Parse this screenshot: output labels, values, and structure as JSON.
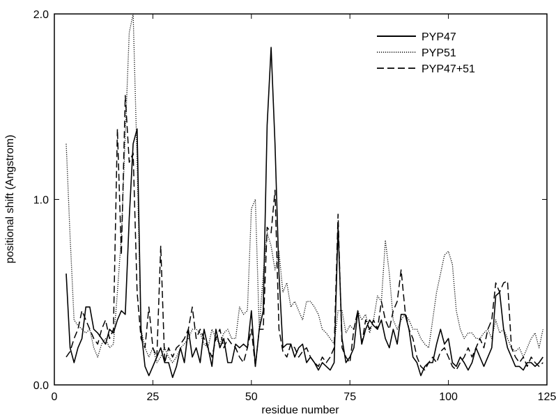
{
  "chart_data": {
    "type": "line",
    "title": "",
    "xlabel": "residue number",
    "ylabel": "positional shift (Angstrom)",
    "xlim": [
      0,
      125
    ],
    "ylim": [
      0,
      2
    ],
    "x_ticks": [
      0,
      25,
      50,
      75,
      100,
      125
    ],
    "x_tick_labels": [
      "0",
      "25",
      "50",
      "75",
      "100",
      "125"
    ],
    "y_ticks": [
      0,
      1,
      2
    ],
    "y_tick_labels": [
      "0.0",
      "1.0",
      "2.0"
    ],
    "grid": false,
    "legend_position": "top-right",
    "x": [
      3,
      4,
      5,
      6,
      7,
      8,
      9,
      10,
      11,
      12,
      13,
      14,
      15,
      16,
      17,
      18,
      19,
      20,
      21,
      22,
      23,
      24,
      25,
      26,
      27,
      28,
      29,
      30,
      31,
      32,
      33,
      34,
      35,
      36,
      37,
      38,
      39,
      40,
      41,
      42,
      43,
      44,
      45,
      46,
      47,
      48,
      49,
      50,
      51,
      52,
      53,
      54,
      55,
      56,
      57,
      58,
      59,
      60,
      61,
      62,
      63,
      64,
      65,
      66,
      67,
      68,
      69,
      70,
      71,
      72,
      73,
      74,
      75,
      76,
      77,
      78,
      79,
      80,
      81,
      82,
      83,
      84,
      85,
      86,
      87,
      88,
      89,
      90,
      91,
      92,
      93,
      94,
      95,
      96,
      97,
      98,
      99,
      100,
      101,
      102,
      103,
      104,
      105,
      106,
      107,
      108,
      109,
      110,
      111,
      112,
      113,
      114,
      115,
      116,
      117,
      118,
      119,
      120,
      121,
      122,
      123,
      124
    ],
    "series": [
      {
        "name": "PYP47",
        "dash": "solid",
        "values": [
          0.6,
          0.2,
          0.12,
          0.2,
          0.25,
          0.42,
          0.42,
          0.3,
          0.28,
          0.25,
          0.22,
          0.3,
          0.28,
          0.35,
          0.4,
          0.38,
          0.9,
          1.3,
          1.38,
          0.3,
          0.1,
          0.05,
          0.1,
          0.15,
          0.2,
          0.12,
          0.12,
          0.04,
          0.1,
          0.2,
          0.12,
          0.3,
          0.15,
          0.2,
          0.12,
          0.3,
          0.2,
          0.1,
          0.3,
          0.2,
          0.25,
          0.12,
          0.12,
          0.22,
          0.2,
          0.22,
          0.2,
          0.4,
          0.1,
          0.3,
          0.4,
          1.4,
          1.82,
          1.3,
          0.6,
          0.2,
          0.22,
          0.22,
          0.15,
          0.2,
          0.22,
          0.12,
          0.15,
          0.12,
          0.08,
          0.12,
          0.1,
          0.08,
          0.12,
          0.85,
          0.25,
          0.12,
          0.15,
          0.2,
          0.4,
          0.22,
          0.3,
          0.35,
          0.32,
          0.3,
          0.35,
          0.25,
          0.2,
          0.3,
          0.22,
          0.38,
          0.38,
          0.3,
          0.15,
          0.12,
          0.05,
          0.1,
          0.12,
          0.12,
          0.22,
          0.3,
          0.22,
          0.25,
          0.12,
          0.1,
          0.15,
          0.12,
          0.08,
          0.12,
          0.2,
          0.15,
          0.1,
          0.15,
          0.2,
          0.48,
          0.5,
          0.3,
          0.2,
          0.15,
          0.1,
          0.1,
          0.08,
          0.12,
          0.12,
          0.1,
          0.12,
          0.15
        ]
      },
      {
        "name": "PYP51",
        "dash": "dotted",
        "values": [
          1.3,
          0.8,
          0.35,
          0.32,
          0.3,
          0.28,
          0.3,
          0.2,
          0.15,
          0.22,
          0.25,
          0.2,
          0.22,
          0.5,
          0.8,
          1.35,
          1.9,
          2.0,
          1.2,
          0.3,
          0.2,
          0.15,
          0.2,
          0.12,
          0.15,
          0.2,
          0.15,
          0.12,
          0.15,
          0.2,
          0.22,
          0.25,
          0.3,
          0.3,
          0.28,
          0.22,
          0.2,
          0.3,
          0.25,
          0.22,
          0.28,
          0.3,
          0.25,
          0.25,
          0.42,
          0.38,
          0.4,
          0.95,
          1.0,
          0.3,
          0.6,
          0.82,
          0.75,
          0.62,
          0.72,
          0.5,
          0.55,
          0.42,
          0.45,
          0.4,
          0.35,
          0.45,
          0.45,
          0.42,
          0.38,
          0.3,
          0.28,
          0.25,
          0.22,
          0.4,
          0.4,
          0.28,
          0.32,
          0.3,
          0.4,
          0.35,
          0.38,
          0.28,
          0.35,
          0.48,
          0.45,
          0.78,
          0.6,
          0.35,
          0.3,
          0.35,
          0.38,
          0.35,
          0.3,
          0.3,
          0.25,
          0.22,
          0.2,
          0.35,
          0.5,
          0.6,
          0.7,
          0.72,
          0.65,
          0.4,
          0.3,
          0.25,
          0.28,
          0.28,
          0.25,
          0.25,
          0.28,
          0.3,
          0.25,
          0.35,
          0.28,
          0.3,
          0.25,
          0.2,
          0.18,
          0.2,
          0.15,
          0.2,
          0.25,
          0.28,
          0.2,
          0.3
        ]
      },
      {
        "name": "PYP47+51",
        "dash": "dashed",
        "values": [
          0.15,
          0.18,
          0.25,
          0.3,
          0.4,
          0.35,
          0.3,
          0.25,
          0.22,
          0.3,
          0.35,
          0.25,
          0.3,
          1.38,
          0.7,
          1.56,
          1.2,
          1.25,
          0.5,
          0.25,
          0.2,
          0.42,
          0.2,
          0.15,
          0.75,
          0.12,
          0.2,
          0.15,
          0.2,
          0.22,
          0.25,
          0.3,
          0.42,
          0.25,
          0.3,
          0.25,
          0.2,
          0.15,
          0.25,
          0.3,
          0.2,
          0.25,
          0.22,
          0.2,
          0.15,
          0.12,
          0.2,
          0.3,
          0.1,
          0.3,
          0.3,
          0.85,
          0.82,
          1.05,
          0.3,
          0.18,
          0.15,
          0.22,
          0.2,
          0.15,
          0.18,
          0.2,
          0.15,
          0.12,
          0.1,
          0.15,
          0.12,
          0.15,
          0.2,
          0.92,
          0.2,
          0.15,
          0.12,
          0.3,
          0.4,
          0.22,
          0.35,
          0.3,
          0.35,
          0.3,
          0.45,
          0.35,
          0.3,
          0.4,
          0.45,
          0.62,
          0.4,
          0.3,
          0.25,
          0.15,
          0.1,
          0.08,
          0.12,
          0.15,
          0.12,
          0.18,
          0.2,
          0.15,
          0.1,
          0.08,
          0.12,
          0.15,
          0.2,
          0.15,
          0.2,
          0.25,
          0.2,
          0.3,
          0.35,
          0.55,
          0.5,
          0.55,
          0.56,
          0.2,
          0.15,
          0.12,
          0.15,
          0.1,
          0.15,
          0.12,
          0.1,
          0.12
        ]
      }
    ]
  }
}
